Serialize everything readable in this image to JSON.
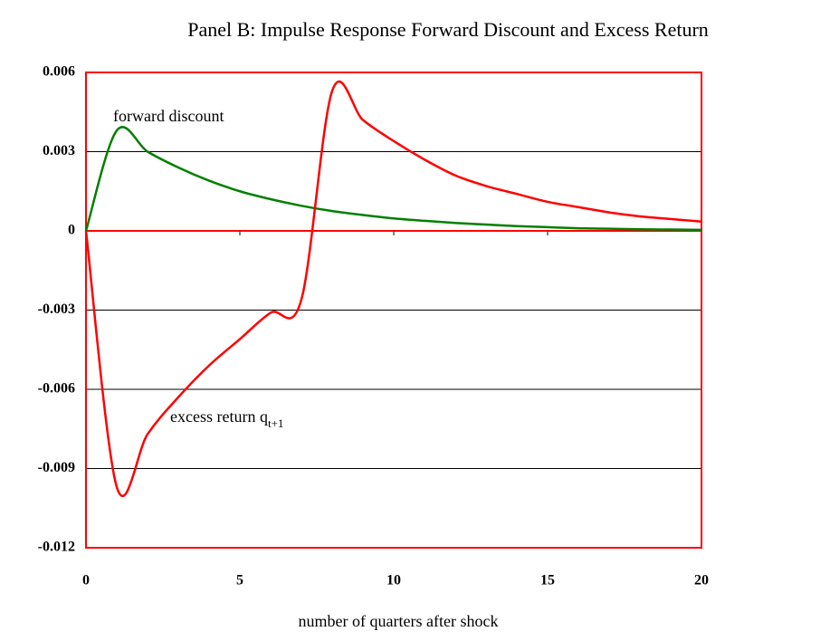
{
  "chart_data": {
    "type": "line",
    "title": "Panel B: Impulse Response Forward Discount and Excess Return",
    "x_label": "number of  quarters after shock",
    "x": [
      0,
      1,
      2,
      3,
      4,
      5,
      6,
      7,
      8,
      9,
      10,
      11,
      12,
      13,
      14,
      15,
      16,
      17,
      18,
      19,
      20
    ],
    "series": [
      {
        "name": "forward discount",
        "color": "#008000",
        "values": [
          0,
          0.0038,
          0.003,
          0.0024,
          0.0019,
          0.0015,
          0.0012,
          0.00095,
          0.00075,
          0.0006,
          0.00047,
          0.00038,
          0.0003,
          0.00024,
          0.00018,
          0.00014,
          0.0001,
          8e-05,
          6e-05,
          5e-05,
          4e-05
        ]
      },
      {
        "name": "excess return q",
        "name_subscript": "t+1",
        "color": "#ff0000",
        "values": [
          0,
          -0.0097,
          -0.0077,
          -0.0063,
          -0.0051,
          -0.0041,
          -0.0031,
          -0.0026,
          0.0053,
          0.0042,
          0.0034,
          0.0027,
          0.0021,
          0.0017,
          0.0014,
          0.0011,
          0.0009,
          0.0007,
          0.00055,
          0.00045,
          0.00035
        ]
      }
    ],
    "xlim": [
      0,
      20
    ],
    "xticks": [
      0,
      5,
      10,
      15,
      20
    ],
    "ylim": [
      -0.012,
      0.006
    ],
    "yticks": [
      0.006,
      0.003,
      0,
      -0.003,
      -0.006,
      -0.009,
      -0.012
    ],
    "grid": true
  }
}
